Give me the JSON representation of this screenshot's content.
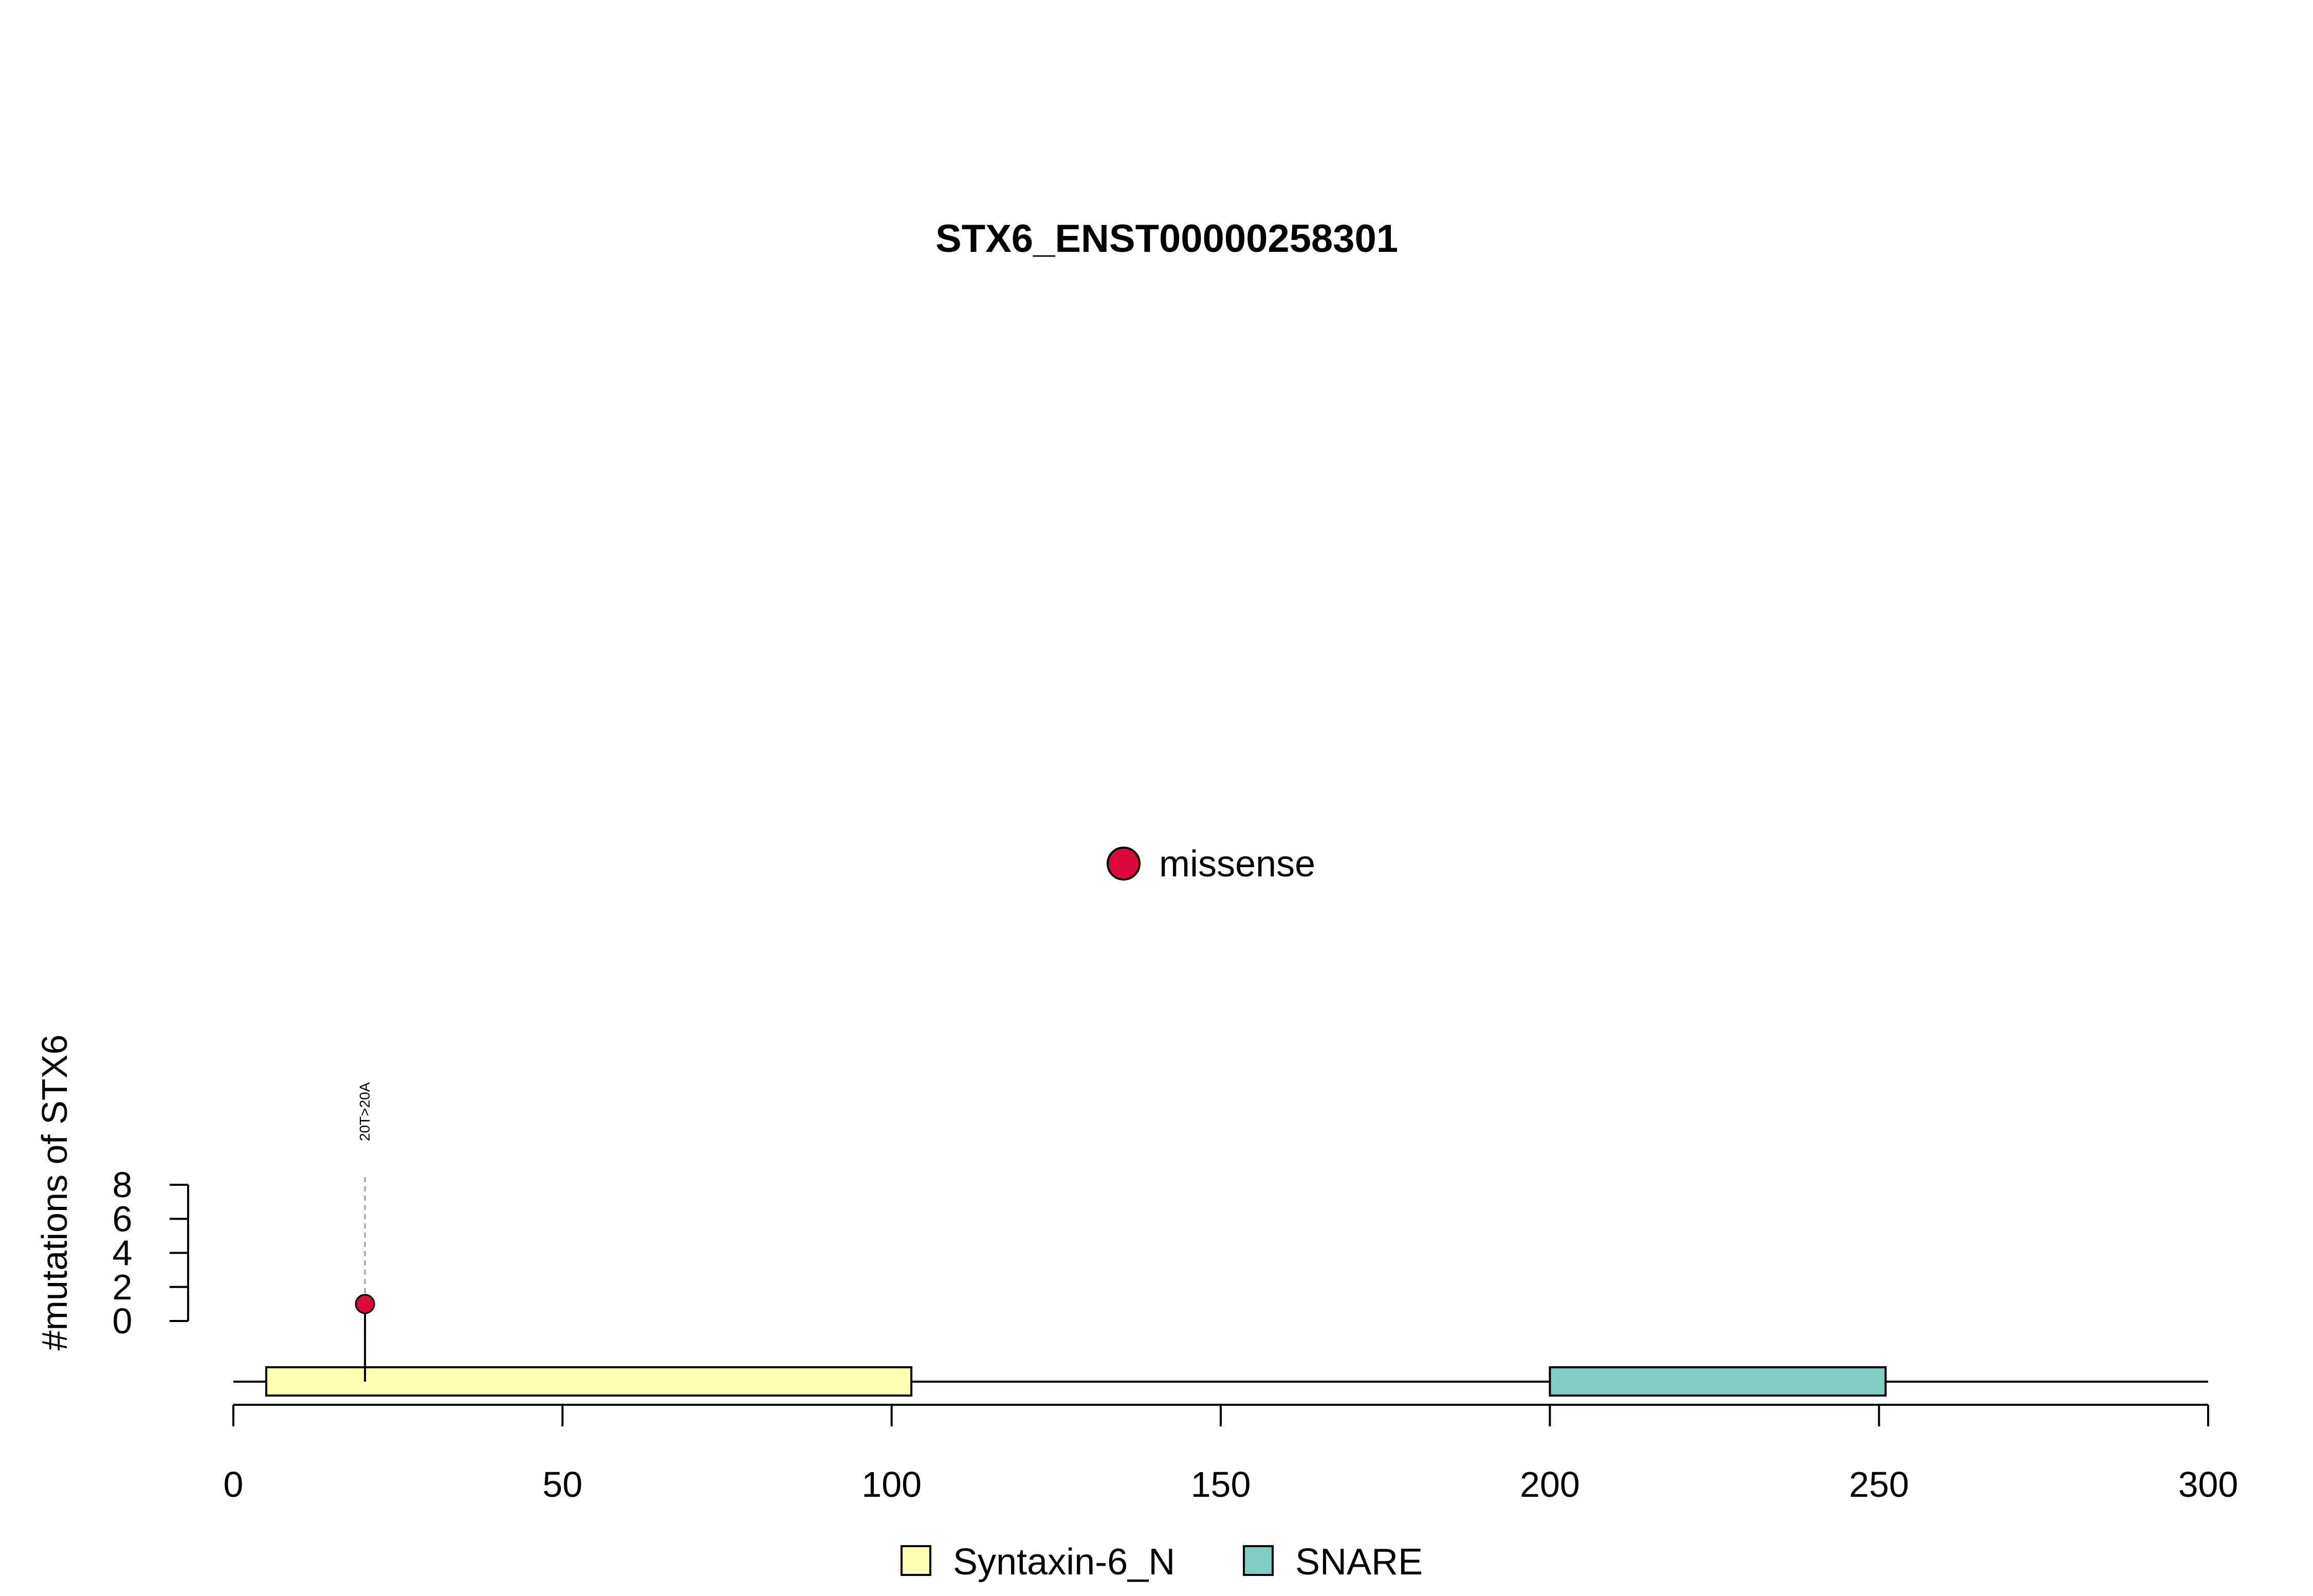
{
  "chart_data": {
    "type": "scatter",
    "subtype": "lollipop",
    "title": "STX6_ENST00000258301",
    "ylabel": "#mutations of STX6",
    "xlim": [
      0,
      300
    ],
    "ylim": [
      0,
      8
    ],
    "x_ticks": [
      "0",
      "50",
      "100",
      "150",
      "200",
      "250",
      "300"
    ],
    "x_tick_values": [
      0,
      50,
      100,
      150,
      200,
      250,
      300
    ],
    "y_ticks": [
      "0",
      "2",
      "4",
      "6",
      "8"
    ],
    "y_tick_values": [
      0,
      2,
      4,
      6,
      8
    ],
    "grid": false,
    "mutation_legend": {
      "placement": "center",
      "entries": [
        {
          "label": "missense",
          "color": "#DC0A3C"
        }
      ]
    },
    "domain_legend": {
      "placement": "bottom",
      "entries": [
        {
          "label": "Syntaxin-6_N",
          "color": "#FFFFB2"
        },
        {
          "label": "SNARE",
          "color": "#80CDC1"
        }
      ]
    },
    "domains": [
      {
        "name": "Syntaxin-6_N",
        "start": 5,
        "end": 103,
        "color": "#FFFFB2"
      },
      {
        "name": "SNARE",
        "start": 200,
        "end": 251,
        "color": "#80CDC1"
      }
    ],
    "mutations": [
      {
        "position": 20,
        "count": 1,
        "type": "missense",
        "label": "20T>20A",
        "color": "#DC0A3C"
      }
    ]
  }
}
